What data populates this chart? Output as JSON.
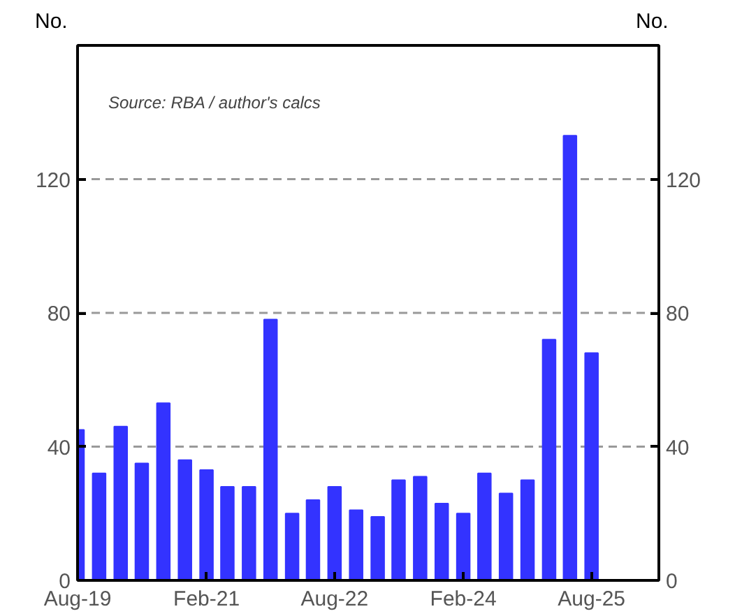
{
  "chart_data": {
    "type": "bar",
    "x": [
      "2019-08",
      "2019-11",
      "2020-02",
      "2020-05",
      "2020-08",
      "2020-11",
      "2021-02",
      "2021-05",
      "2021-08",
      "2021-11",
      "2022-02",
      "2022-05",
      "2022-08",
      "2022-11",
      "2023-02",
      "2023-05",
      "2023-08",
      "2023-11",
      "2024-02",
      "2024-05",
      "2024-08",
      "2024-11",
      "2025-02",
      "2025-05",
      "2025-08"
    ],
    "values": [
      45,
      32,
      46,
      35,
      53,
      36,
      33,
      28,
      28,
      78,
      20,
      24,
      28,
      21,
      19,
      30,
      31,
      23,
      20,
      32,
      26,
      30,
      72,
      133,
      68
    ],
    "color": "#3333ff",
    "xlim": [
      "2019-08",
      "2026-05-15"
    ],
    "xticks": [
      {
        "value": "2019-08",
        "label": "Aug-19"
      },
      {
        "value": "2021-02",
        "label": "Feb-21"
      },
      {
        "value": "2022-08",
        "label": "Aug-22"
      },
      {
        "value": "2024-02",
        "label": "Feb-24"
      },
      {
        "value": "2025-08",
        "label": "Aug-25"
      }
    ],
    "ylim": [
      0,
      160
    ],
    "yticks": [
      0,
      40,
      80,
      120
    ],
    "y2lim": [
      0,
      160
    ],
    "y2ticks": [
      0,
      40,
      80,
      120
    ],
    "ylabel": "No.",
    "y2label": "No.",
    "annotations": [
      "Source: RBA / author's calcs"
    ],
    "grid": "y"
  }
}
